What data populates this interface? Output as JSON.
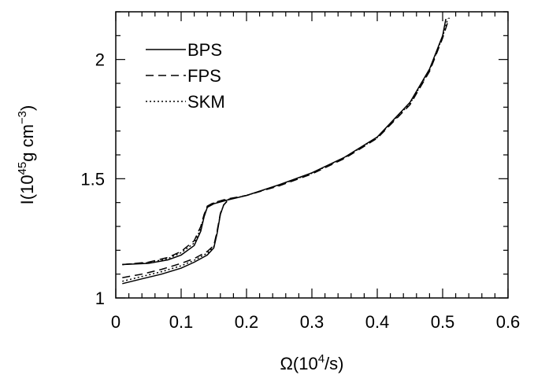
{
  "chart_data": {
    "type": "line",
    "title": "",
    "xlabel": {
      "prefix": "Ω(10",
      "sup": "4",
      "suffix": "/s)"
    },
    "ylabel": {
      "prefix": "I(10",
      "sup1": "45",
      "mid": "g cm",
      "sup2": "−3",
      "suffix": ")"
    },
    "xlim": [
      0,
      0.6
    ],
    "ylim": [
      1,
      2.2
    ],
    "x_ticks": [
      0,
      0.1,
      0.2,
      0.3,
      0.4,
      0.5,
      0.6
    ],
    "x_tick_labels": [
      "0",
      "0.1",
      "0.2",
      "0.3",
      "0.4",
      "0.5",
      "0.6"
    ],
    "y_ticks": [
      1,
      1.5,
      2
    ],
    "y_tick_labels": [
      "1",
      "1.5",
      "2"
    ],
    "grid": false,
    "legend_position": "top-left",
    "series": [
      {
        "name": "BPS",
        "style": "solid",
        "branches": [
          {
            "x": [
              0.01,
              0.05,
              0.08,
              0.1,
              0.12,
              0.13,
              0.135,
              0.14,
              0.15,
              0.17,
              0.2,
              0.25,
              0.3,
              0.35,
              0.4,
              0.45,
              0.48,
              0.5,
              0.505
            ],
            "y": [
              1.14,
              1.145,
              1.16,
              1.18,
              1.22,
              1.28,
              1.34,
              1.38,
              1.395,
              1.41,
              1.43,
              1.475,
              1.525,
              1.59,
              1.675,
              1.82,
              1.96,
              2.1,
              2.17
            ]
          },
          {
            "x": [
              0.01,
              0.04,
              0.07,
              0.1,
              0.12,
              0.14,
              0.15,
              0.155,
              0.16,
              0.165,
              0.17
            ],
            "y": [
              1.06,
              1.08,
              1.1,
              1.125,
              1.15,
              1.18,
              1.21,
              1.27,
              1.35,
              1.39,
              1.405
            ]
          }
        ]
      },
      {
        "name": "FPS",
        "style": "dashed",
        "branches": [
          {
            "x": [
              0.01,
              0.05,
              0.08,
              0.1,
              0.12,
              0.13,
              0.135,
              0.14,
              0.15,
              0.17,
              0.2,
              0.25,
              0.3,
              0.35,
              0.4,
              0.45,
              0.48,
              0.5,
              0.51
            ],
            "y": [
              1.14,
              1.15,
              1.17,
              1.195,
              1.24,
              1.3,
              1.35,
              1.385,
              1.4,
              1.415,
              1.43,
              1.47,
              1.52,
              1.585,
              1.67,
              1.81,
              1.95,
              2.09,
              2.175
            ]
          },
          {
            "x": [
              0.01,
              0.04,
              0.07,
              0.1,
              0.12,
              0.14,
              0.15,
              0.155,
              0.16,
              0.165,
              0.17
            ],
            "y": [
              1.085,
              1.1,
              1.12,
              1.145,
              1.165,
              1.195,
              1.22,
              1.28,
              1.355,
              1.39,
              1.405
            ]
          }
        ]
      },
      {
        "name": "SKM",
        "style": "dotted",
        "branches": [
          {
            "x": [
              0.01,
              0.05,
              0.08,
              0.1,
              0.12,
              0.13,
              0.135,
              0.14,
              0.15,
              0.17,
              0.2,
              0.25,
              0.3,
              0.35,
              0.4,
              0.45,
              0.48,
              0.5,
              0.508
            ],
            "y": [
              1.14,
              1.148,
              1.165,
              1.19,
              1.23,
              1.29,
              1.345,
              1.382,
              1.398,
              1.412,
              1.43,
              1.473,
              1.523,
              1.588,
              1.673,
              1.815,
              1.955,
              2.095,
              2.172
            ]
          },
          {
            "x": [
              0.01,
              0.04,
              0.07,
              0.1,
              0.12,
              0.14,
              0.15,
              0.155,
              0.16,
              0.165,
              0.17
            ],
            "y": [
              1.07,
              1.09,
              1.11,
              1.135,
              1.158,
              1.188,
              1.215,
              1.275,
              1.352,
              1.39,
              1.405
            ]
          }
        ]
      }
    ]
  }
}
